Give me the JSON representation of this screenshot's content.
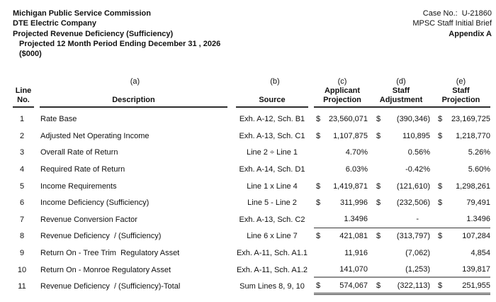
{
  "header": {
    "left": {
      "commission": "Michigan Public Service Commission",
      "company": "DTE Electric Company",
      "report_title": "Projected Revenue Deficiency (Sufficiency)",
      "period": "Projected 12 Month Period Ending December 31 , 2026",
      "units": "($000)"
    },
    "right": {
      "case_no": "Case No.:  U-21860",
      "brief": "MPSC Staff Initial Brief",
      "appendix": "Appendix A"
    }
  },
  "table": {
    "column_letters": {
      "a": "(a)",
      "b": "(b)",
      "c": "(c)",
      "d": "(d)",
      "e": "(e)"
    },
    "headers": {
      "line": "Line",
      "no": "No.",
      "description": "Description",
      "source": "Source",
      "applicant": "Applicant",
      "projection_c": "Projection",
      "staff_d": "Staff",
      "adjustment": "Adjustment",
      "staff_e": "Staff",
      "projection_e": "Projection"
    },
    "rows": [
      {
        "no": "1",
        "desc": "Rate Base",
        "source": "Exh. A-12, Sch. B1",
        "c_dollar": "$",
        "c": "23,560,071",
        "d_dollar": "$",
        "d": "(390,346)",
        "e_dollar": "$",
        "e": "23,169,725"
      },
      {
        "no": "2",
        "desc": "Adjusted Net Operating Income",
        "source": "Exh. A-13, Sch. C1",
        "c_dollar": "$",
        "c": "1,107,875",
        "d_dollar": "$",
        "d": "110,895",
        "e_dollar": "$",
        "e": "1,218,770"
      },
      {
        "no": "3",
        "desc": "Overall Rate of Return",
        "source": "Line 2 ÷ Line 1",
        "c": "4.70%",
        "d": "0.56%",
        "e": "5.26%"
      },
      {
        "no": "4",
        "desc": "Required Rate of Return",
        "source": "Exh. A-14, Sch. D1",
        "c": "6.03%",
        "d": "-0.42%",
        "e": "5.60%"
      },
      {
        "no": "5",
        "desc": "Income Requirements",
        "source": "Line 1 x Line 4",
        "c_dollar": "$",
        "c": "1,419,871",
        "d_dollar": "$",
        "d": "(121,610)",
        "e_dollar": "$",
        "e": "1,298,261"
      },
      {
        "no": "6",
        "desc": "Income Deficiency (Sufficiency)",
        "source": "Line 5 - Line 2",
        "c_dollar": "$",
        "c": "311,996",
        "d_dollar": "$",
        "d": "(232,506)",
        "e_dollar": "$",
        "e": "79,491"
      },
      {
        "no": "7",
        "desc": "Revenue Conversion Factor",
        "source": "Exh. A-13, Sch. C2",
        "c": "1.3496",
        "d": "-",
        "e": "1.3496",
        "rule": "single",
        "d_class": "dash-val"
      },
      {
        "no": "8",
        "desc": "Revenue Deficiency  / (Sufficiency)",
        "source": "Line 6 x Line 7",
        "c_dollar": "$",
        "c": "421,081",
        "d_dollar": "$",
        "d": "(313,797)",
        "e_dollar": "$",
        "e": "107,284"
      },
      {
        "no": "9",
        "desc": "Return On - Tree Trim  Regulatory Asset",
        "source": "Exh. A-11, Sch. A1.1",
        "c": "11,916",
        "d": "(7,062)",
        "e": "4,854"
      },
      {
        "no": "10",
        "desc": "Return On - Monroe Regulatory Asset",
        "source": "Exh. A-11, Sch. A1.2",
        "c": "141,070",
        "d": "(1,253)",
        "e": "139,817",
        "rule": "heavy"
      },
      {
        "no": "11",
        "desc": "Revenue Deficiency  / (Sufficiency)-Total",
        "source": "Sum Lines 8, 9, 10",
        "c_dollar": "$",
        "c": "574,067",
        "d_dollar": "$",
        "d": "(322,113)",
        "e_dollar": "$",
        "e": "251,955",
        "rule": "double"
      }
    ]
  }
}
